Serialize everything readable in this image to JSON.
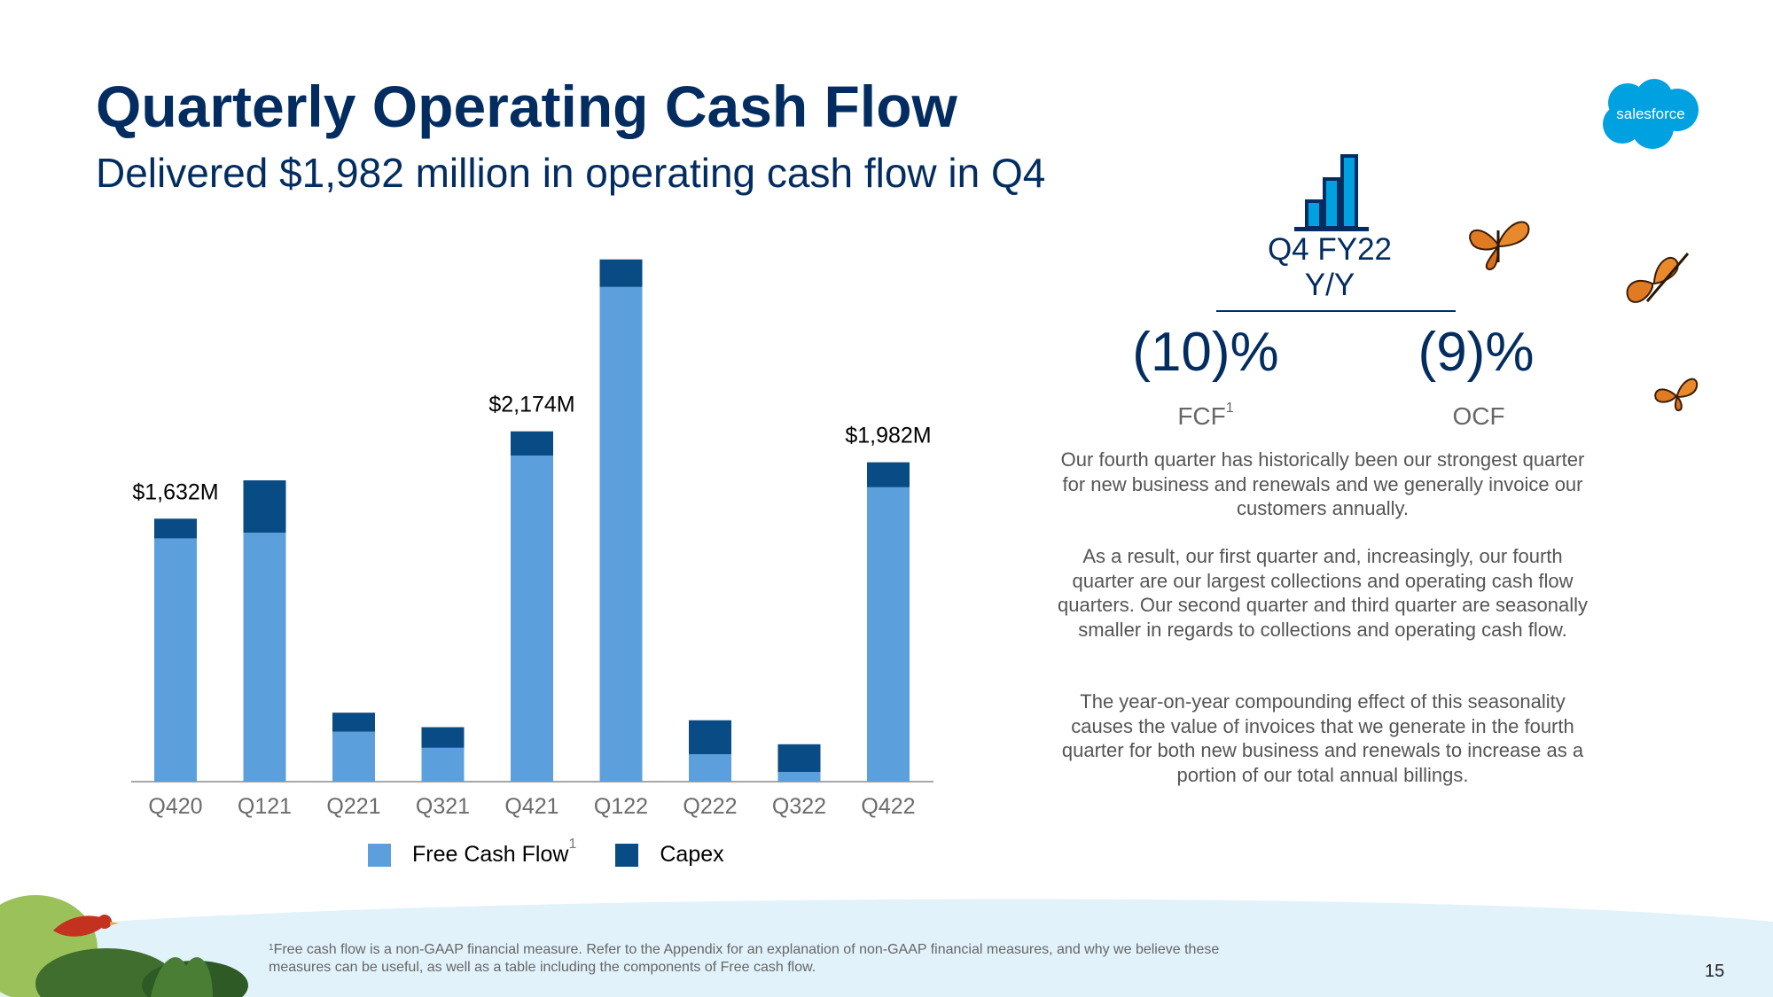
{
  "title": "Quarterly Operating Cash Flow",
  "subtitle": "Delivered $1,982 million in operating cash flow in Q4",
  "logo_text": "salesforce",
  "colors": {
    "navy": "#032d60",
    "fcf": "#5ba0dc",
    "capex": "#084b85",
    "cloud": "#00a1e0",
    "band": "#e1f2fb"
  },
  "chart_data": {
    "type": "bar",
    "stacked": true,
    "categories": [
      "Q420",
      "Q121",
      "Q221",
      "Q321",
      "Q421",
      "Q122",
      "Q222",
      "Q322",
      "Q422"
    ],
    "series": [
      {
        "name": "Free Cash Flow",
        "values": [
          1510,
          1545,
          310,
          210,
          2024,
          3070,
          170,
          60,
          1827
        ]
      },
      {
        "name": "Capex",
        "values": [
          122,
          325,
          118,
          128,
          150,
          171,
          211,
          172,
          155
        ]
      }
    ],
    "data_labels": [
      {
        "category": "Q420",
        "text": "$1,632M"
      },
      {
        "category": "Q421",
        "text": "$2,174M"
      },
      {
        "category": "Q422",
        "text": "$1,982M"
      }
    ],
    "legend": {
      "position": "bottom",
      "fcf_label": "Free Cash Flow",
      "fcf_sup": "1",
      "capex_label": "Capex"
    },
    "ylim": [
      0,
      3300
    ],
    "grid": false
  },
  "kpi": {
    "icon": "bar-chart-icon",
    "header_line1": "Q4 FY22",
    "header_line2": "Y/Y",
    "fcf_value": "(10)%",
    "fcf_label": "FCF",
    "fcf_sup": "1",
    "ocf_value": "(9)%",
    "ocf_label": "OCF"
  },
  "paragraphs": [
    "Our fourth quarter has historically been our strongest quarter for new business and renewals and we generally invoice our customers annually.",
    "As a result, our first quarter and, increasingly, our fourth quarter are our largest collections and operating cash flow quarters. Our second quarter and third quarter are seasonally smaller in regards to collections and operating cash flow.",
    "The year-on-year compounding effect of this seasonality causes the value of invoices that we generate in the fourth quarter for both new business and renewals to increase as a portion of our total annual billings."
  ],
  "footnote": {
    "sup": "1",
    "text": "Free cash flow is a non-GAAP financial measure. Refer to the Appendix for an explanation of non-GAAP financial measures, and why we believe these measures can be useful, as well as a table including the components of Free cash flow."
  },
  "page_number": "15"
}
